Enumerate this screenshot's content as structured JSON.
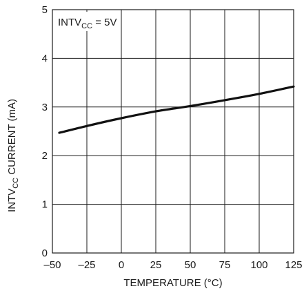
{
  "chart_data": {
    "type": "line",
    "annotation": {
      "main": "INTV",
      "sub": "CC",
      "suffix": " = 5V"
    },
    "xlabel": "TEMPERATURE (°C)",
    "ylabel": {
      "pre": "INTV",
      "sub": "CC",
      "post": " CURRENT (mA)"
    },
    "xlim": [
      -50,
      125
    ],
    "ylim": [
      0,
      5
    ],
    "xticks": [
      -50,
      -25,
      0,
      25,
      50,
      75,
      100,
      125
    ],
    "yticks": [
      0,
      1,
      2,
      3,
      4,
      5
    ],
    "xtick_labels": [
      "–50",
      "–25",
      "0",
      "25",
      "50",
      "75",
      "100",
      "125"
    ],
    "ytick_labels": [
      "0",
      "1",
      "2",
      "3",
      "4",
      "5"
    ],
    "grid": true,
    "series": [
      {
        "x": [
          -45,
          -25,
          0,
          25,
          50,
          75,
          100,
          125
        ],
        "y": [
          2.47,
          2.61,
          2.77,
          2.91,
          3.02,
          3.14,
          3.27,
          3.42
        ],
        "color": "#111111"
      }
    ]
  }
}
